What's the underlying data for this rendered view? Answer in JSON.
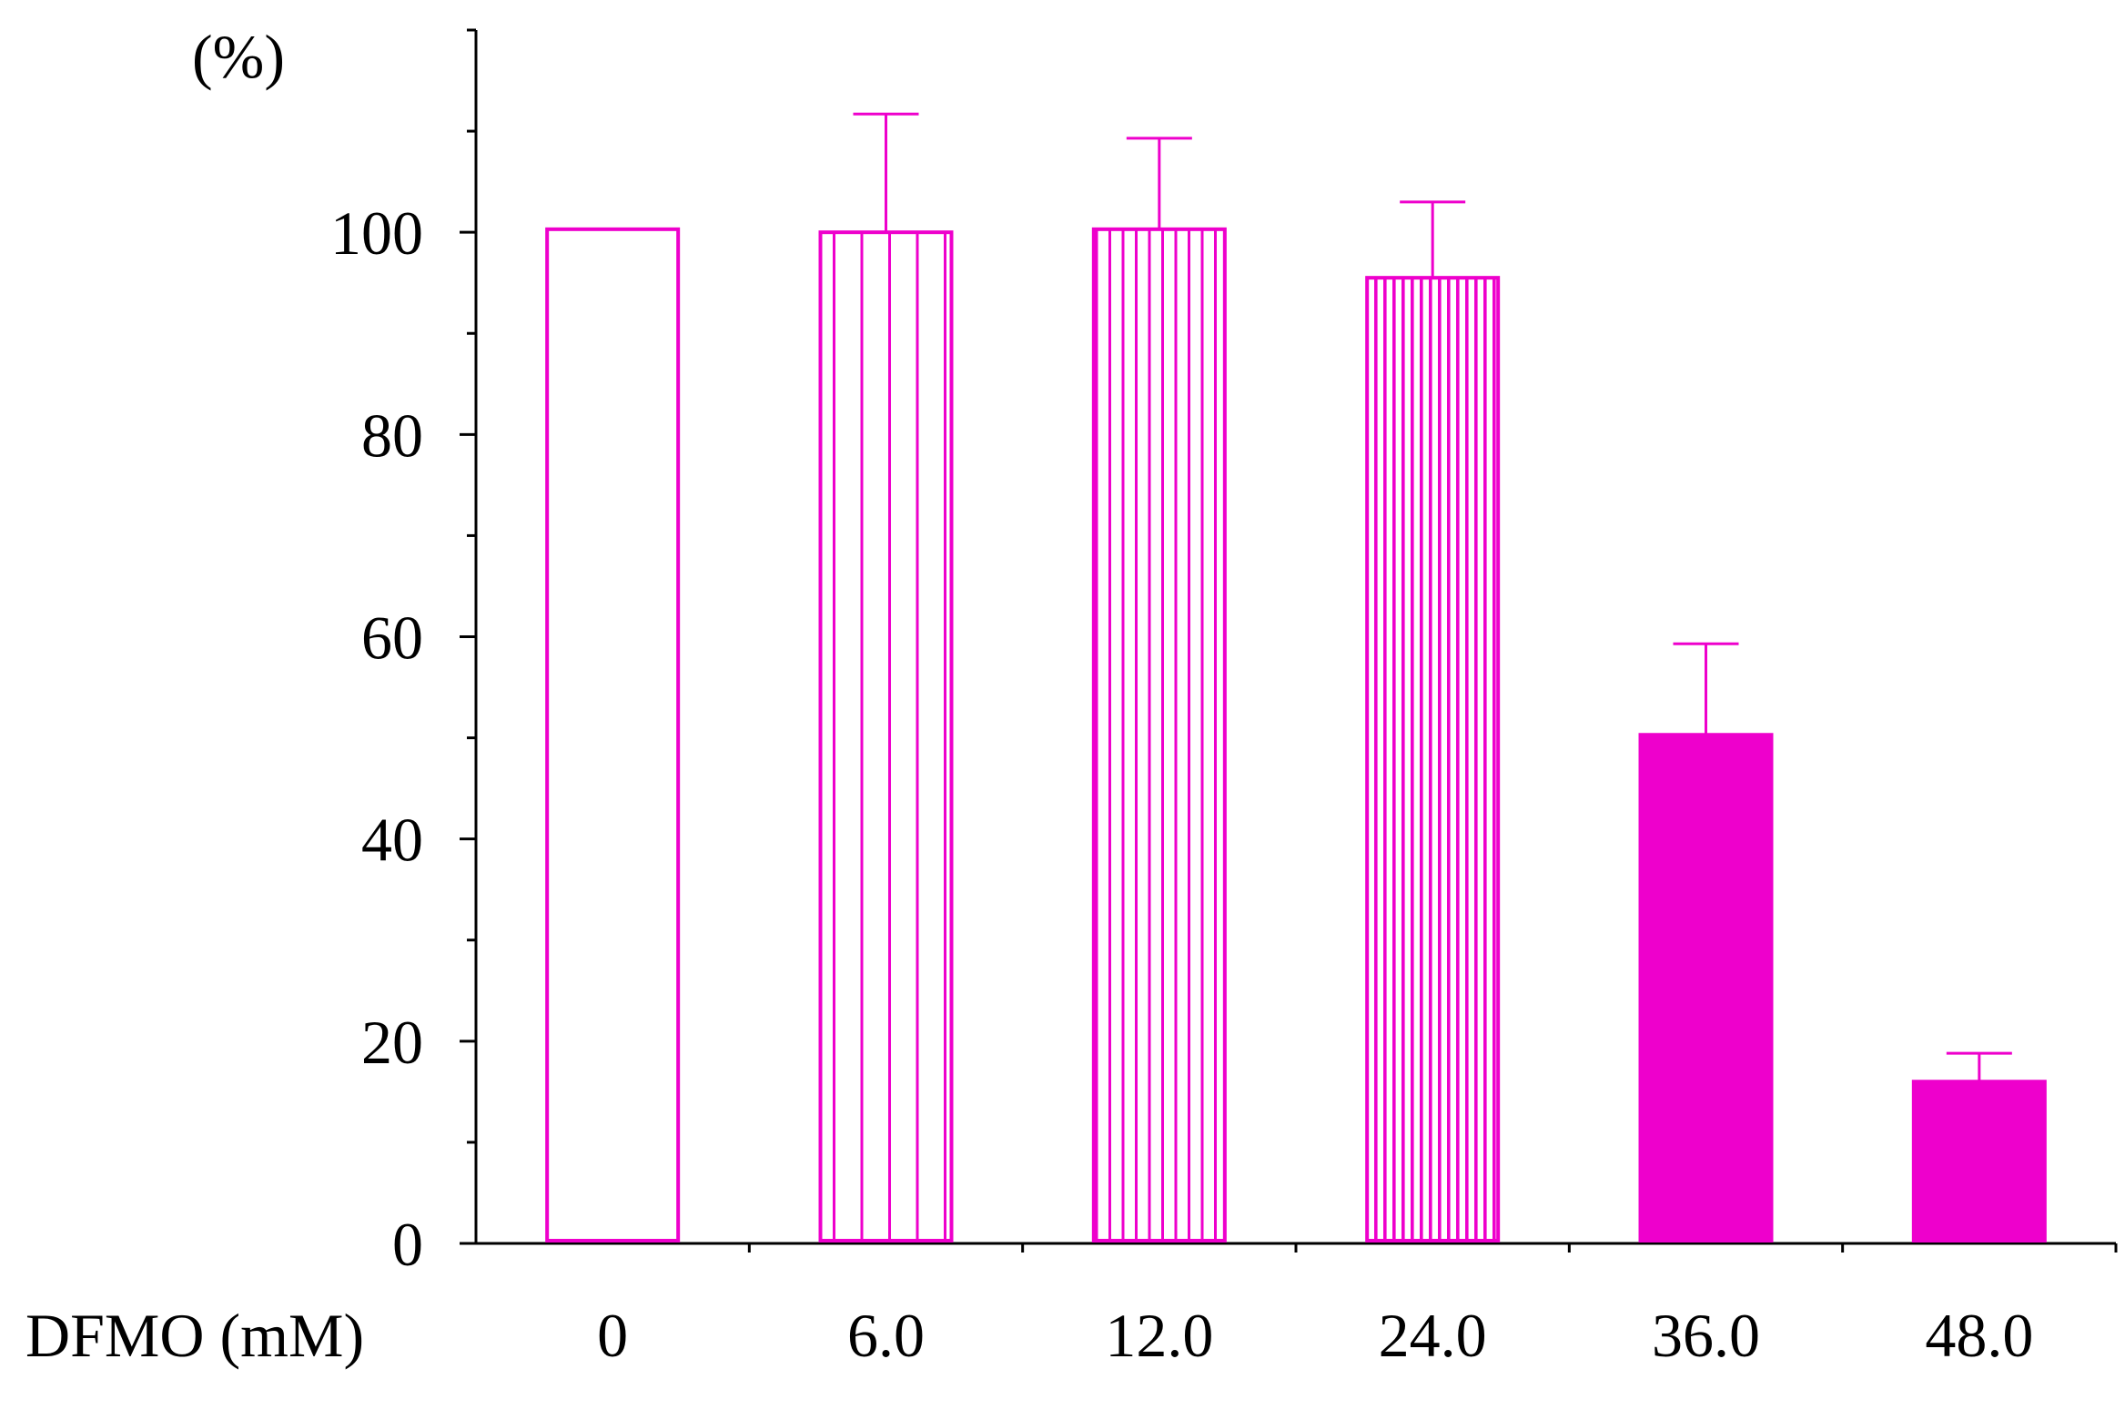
{
  "chart_data": {
    "type": "bar",
    "title": "",
    "ylabel": "(%)",
    "xlabel": "DFMO (mM)",
    "categories": [
      "0",
      "6.0",
      "12.0",
      "24.0",
      "36.0",
      "48.0"
    ],
    "values": [
      100.3,
      100.0,
      100.3,
      95.5,
      50.3,
      16.0
    ],
    "errors": [
      0,
      11.7,
      9.0,
      7.5,
      9.0,
      2.8
    ],
    "fill_styles": [
      "open",
      "sparse-stripes",
      "medium-stripes",
      "dense-stripes",
      "solid",
      "solid"
    ],
    "ylim": [
      0,
      120
    ],
    "yticks": [
      0,
      20,
      40,
      60,
      80,
      100
    ],
    "ytick_labels": [
      "0",
      "20",
      "40",
      "60",
      "80",
      "100"
    ],
    "minor_ytick_step": 10,
    "grid": false,
    "bar_color": "#ee00cc"
  }
}
